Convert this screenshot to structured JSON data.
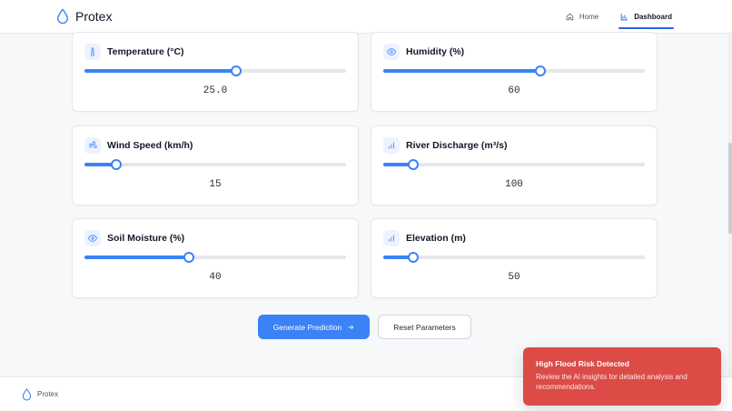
{
  "header": {
    "brand": "Protex",
    "nav": [
      {
        "label": "Home",
        "icon": "home-icon",
        "active": false
      },
      {
        "label": "Dashboard",
        "icon": "bar-chart-icon",
        "active": true
      }
    ]
  },
  "parameters": [
    {
      "label": "Temperature (°C)",
      "icon": "thermometer-icon",
      "value": "25.0",
      "fill_percent": 58
    },
    {
      "label": "Humidity (%)",
      "icon": "eye-icon",
      "value": "60",
      "fill_percent": 60
    },
    {
      "label": "Wind Speed (km/h)",
      "icon": "wind-icon",
      "value": "15",
      "fill_percent": 12
    },
    {
      "label": "River Discharge (m³/s)",
      "icon": "bar-chart-icon",
      "value": "100",
      "fill_percent": 11.5
    },
    {
      "label": "Soil Moisture (%)",
      "icon": "eye-icon",
      "value": "40",
      "fill_percent": 40
    },
    {
      "label": "Elevation (m)",
      "icon": "bar-chart-icon",
      "value": "50",
      "fill_percent": 11.5
    }
  ],
  "actions": {
    "generate_label": "Generate Prediction",
    "reset_label": "Reset Parameters"
  },
  "footer": {
    "brand": "Protex"
  },
  "toast": {
    "title": "High Flood Risk Detected",
    "body": "Review the AI insights for detailed analysis and recommendations."
  },
  "colors": {
    "accent": "#3b82f6",
    "toast_bg": "#dc4b46",
    "border": "#e5e7eb"
  }
}
